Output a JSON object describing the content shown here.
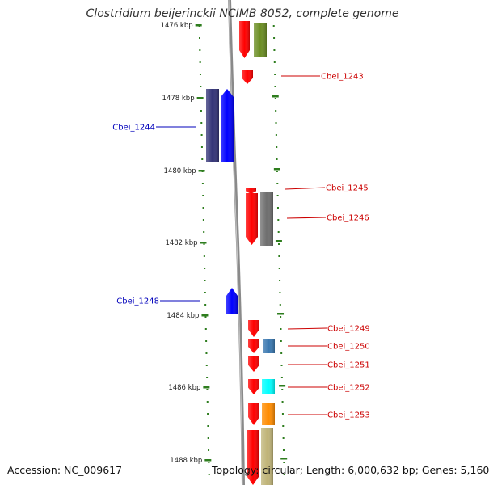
{
  "title": "Clostridium beijerinckii NCIMB 8052, complete genome",
  "footer": {
    "accession": "Accession: NC_009617",
    "summary": "Topology: circular; Length: 6,000,632 bp; Genes: 5,160"
  },
  "scale_labels": [
    "1476 kbp",
    "1478 kbp",
    "1480 kbp",
    "1482 kbp",
    "1484 kbp",
    "1486 kbp",
    "1488 kbp"
  ],
  "colors": {
    "forward_label": "#cc0000",
    "reverse_label": "#0000bb",
    "tick": "#2e7d1e",
    "backbone": "#8a8a8a"
  },
  "genes": [
    {
      "id": "Cbei_1243",
      "label": "Cbei_1243",
      "strand": "forward",
      "color": "#ff0000"
    },
    {
      "id": "Cbei_1244",
      "label": "Cbei_1244",
      "strand": "reverse",
      "color": "#0000ff"
    },
    {
      "id": "Cbei_1245",
      "label": "Cbei_1245",
      "strand": "forward",
      "color": "#ff0000"
    },
    {
      "id": "Cbei_1246",
      "label": "Cbei_1246",
      "strand": "forward",
      "color": "#6e6e6e"
    },
    {
      "id": "Cbei_1248",
      "label": "Cbei_1248",
      "strand": "reverse",
      "color": "#0000ff"
    },
    {
      "id": "Cbei_1249",
      "label": "Cbei_1249",
      "strand": "forward",
      "color": "#ff0000"
    },
    {
      "id": "Cbei_1250",
      "label": "Cbei_1250",
      "strand": "forward",
      "color": "#3a78b0"
    },
    {
      "id": "Cbei_1251",
      "label": "Cbei_1251",
      "strand": "forward",
      "color": "#ff0000"
    },
    {
      "id": "Cbei_1252",
      "label": "Cbei_1252",
      "strand": "forward",
      "color": "#00ffff"
    },
    {
      "id": "Cbei_1253",
      "label": "Cbei_1253",
      "strand": "forward",
      "color": "#ff8c00"
    }
  ],
  "unlabeled_features": [
    {
      "name": "forward-red-top",
      "color": "#ff0000"
    },
    {
      "name": "forward-olive-top",
      "color": "#6b8e23"
    },
    {
      "name": "reverse-navy",
      "color": "#333377"
    },
    {
      "name": "forward-red-bottom",
      "color": "#ff0000"
    },
    {
      "name": "forward-khaki-bottom",
      "color": "#c0b478"
    }
  ]
}
